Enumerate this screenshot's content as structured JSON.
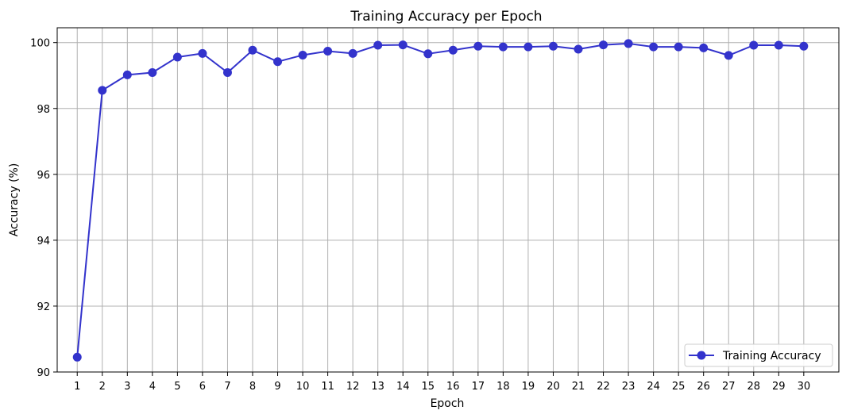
{
  "chart_data": {
    "type": "line",
    "title": "Training Accuracy per Epoch",
    "xlabel": "Epoch",
    "ylabel": "Accuracy (%)",
    "x": [
      1,
      2,
      3,
      4,
      5,
      6,
      7,
      8,
      9,
      10,
      11,
      12,
      13,
      14,
      15,
      16,
      17,
      18,
      19,
      20,
      21,
      22,
      23,
      24,
      25,
      26,
      27,
      28,
      29,
      30
    ],
    "xlim": [
      0.2,
      31.4
    ],
    "ylim": [
      90,
      100.45
    ],
    "yticks": [
      90,
      92,
      94,
      96,
      98,
      100
    ],
    "grid": true,
    "legend_position": "bottom-right",
    "series": [
      {
        "name": "Training Accuracy",
        "color": "#3333cc",
        "marker": "circle",
        "values": [
          90.45,
          98.55,
          99.02,
          99.09,
          99.56,
          99.67,
          99.09,
          99.77,
          99.42,
          99.62,
          99.74,
          99.67,
          99.92,
          99.93,
          99.66,
          99.77,
          99.89,
          99.87,
          99.87,
          99.89,
          99.8,
          99.93,
          99.97,
          99.87,
          99.87,
          99.84,
          99.61,
          99.92,
          99.92,
          99.89
        ]
      }
    ]
  }
}
